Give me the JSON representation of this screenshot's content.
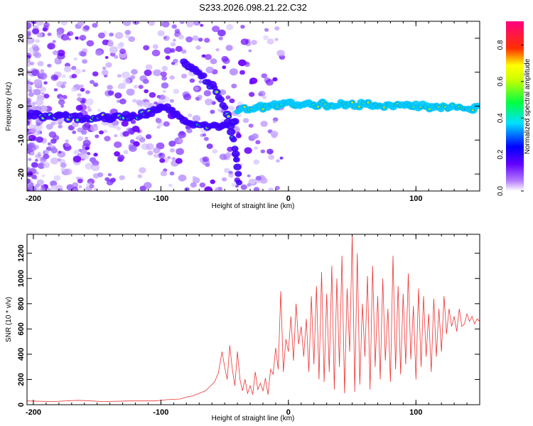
{
  "chart_data": [
    {
      "type": "heatmap",
      "title": "S233.2026.098.21.22.C32",
      "xlabel": "Height of straight line (km)",
      "ylabel": "Frequency (Hz)",
      "xlim": [
        -205,
        150
      ],
      "ylim": [
        -25,
        25
      ],
      "xticks": [
        -200,
        -100,
        0,
        100
      ],
      "yticks": [
        -20,
        -10,
        0,
        10,
        20
      ],
      "colorbar": {
        "label": "Normalized spectral amplitude",
        "range": [
          0,
          0.93
        ],
        "ticks": [
          0.0,
          0.2,
          0.4,
          0.6,
          0.8
        ],
        "colors": [
          "#ffffff",
          "#7a00ff",
          "#0000ff",
          "#00e0ff",
          "#00ff00",
          "#ffff00",
          "#ff0000",
          "#ff00a0"
        ]
      },
      "features": [
        {
          "name": "main-trace",
          "x": [
            -205,
            -160,
            -120,
            -95,
            -80,
            -60,
            -40
          ],
          "y": [
            -2.5,
            -3.5,
            -3.0,
            -0.5,
            -4.5,
            -6.0,
            -5.0
          ]
        },
        {
          "name": "descending-trace",
          "x": [
            -82,
            -70,
            -58,
            -48,
            -42,
            -38
          ],
          "y": [
            13,
            10,
            5,
            -2,
            -12,
            -24
          ]
        },
        {
          "name": "flat-trace",
          "x": [
            -40,
            0,
            50,
            100,
            150
          ],
          "y": [
            -1,
            0.5,
            0.5,
            0,
            -0.5
          ]
        }
      ]
    },
    {
      "type": "line",
      "xlabel": "Height of straight line (km)",
      "ylabel": "SNR (10 * v/v)",
      "xlim": [
        -205,
        150
      ],
      "ylim": [
        0,
        1350
      ],
      "xticks": [
        -200,
        -100,
        0,
        100
      ],
      "yticks": [
        0,
        200,
        400,
        600,
        800,
        1000,
        1200
      ],
      "series": [
        {
          "name": "SNR",
          "color": "#ee3333",
          "x": [
            -205,
            -185,
            -165,
            -145,
            -125,
            -105,
            -95,
            -85,
            -80,
            -75,
            -70,
            -65,
            -62,
            -58,
            -55,
            -52,
            -50,
            -48,
            -46,
            -44,
            -42,
            -40,
            -38,
            -36,
            -34,
            -32,
            -30,
            -28,
            -26,
            -24,
            -22,
            -20,
            -18,
            -16,
            -14,
            -12,
            -10,
            -8,
            -6,
            -4,
            -2,
            0,
            2,
            4,
            6,
            8,
            10,
            12,
            14,
            16,
            18,
            20,
            22,
            24,
            26,
            28,
            30,
            32,
            34,
            36,
            38,
            40,
            42,
            44,
            46,
            48,
            50,
            52,
            54,
            56,
            58,
            60,
            62,
            64,
            66,
            68,
            70,
            72,
            74,
            76,
            78,
            80,
            82,
            84,
            86,
            88,
            90,
            92,
            94,
            96,
            98,
            100,
            102,
            104,
            106,
            108,
            110,
            112,
            114,
            116,
            118,
            120,
            122,
            124,
            126,
            128,
            130,
            132,
            134,
            136,
            138,
            140,
            142,
            144,
            146,
            148,
            150
          ],
          "values": [
            30,
            25,
            35,
            25,
            30,
            30,
            40,
            45,
            60,
            70,
            90,
            110,
            140,
            180,
            250,
            420,
            300,
            200,
            470,
            280,
            150,
            420,
            200,
            110,
            200,
            90,
            150,
            80,
            260,
            120,
            170,
            110,
            210,
            80,
            280,
            240,
            450,
            280,
            900,
            260,
            520,
            420,
            700,
            350,
            800,
            480,
            620,
            380,
            680,
            260,
            860,
            320,
            940,
            200,
            1050,
            180,
            880,
            260,
            1100,
            120,
            1000,
            300,
            1180,
            90,
            920,
            420,
            1350,
            100,
            1200,
            160,
            800,
            380,
            1020,
            120,
            1100,
            300,
            860,
            200,
            1000,
            350,
            760,
            180,
            1180,
            280,
            940,
            240,
            880,
            320,
            1040,
            360,
            780,
            200,
            920,
            300,
            860,
            380,
            720,
            260,
            840,
            380,
            760,
            420,
            860,
            560,
            760,
            620,
            700,
            580,
            760,
            620,
            640,
            720,
            660,
            700,
            640,
            680,
            660
          ]
        }
      ]
    }
  ]
}
